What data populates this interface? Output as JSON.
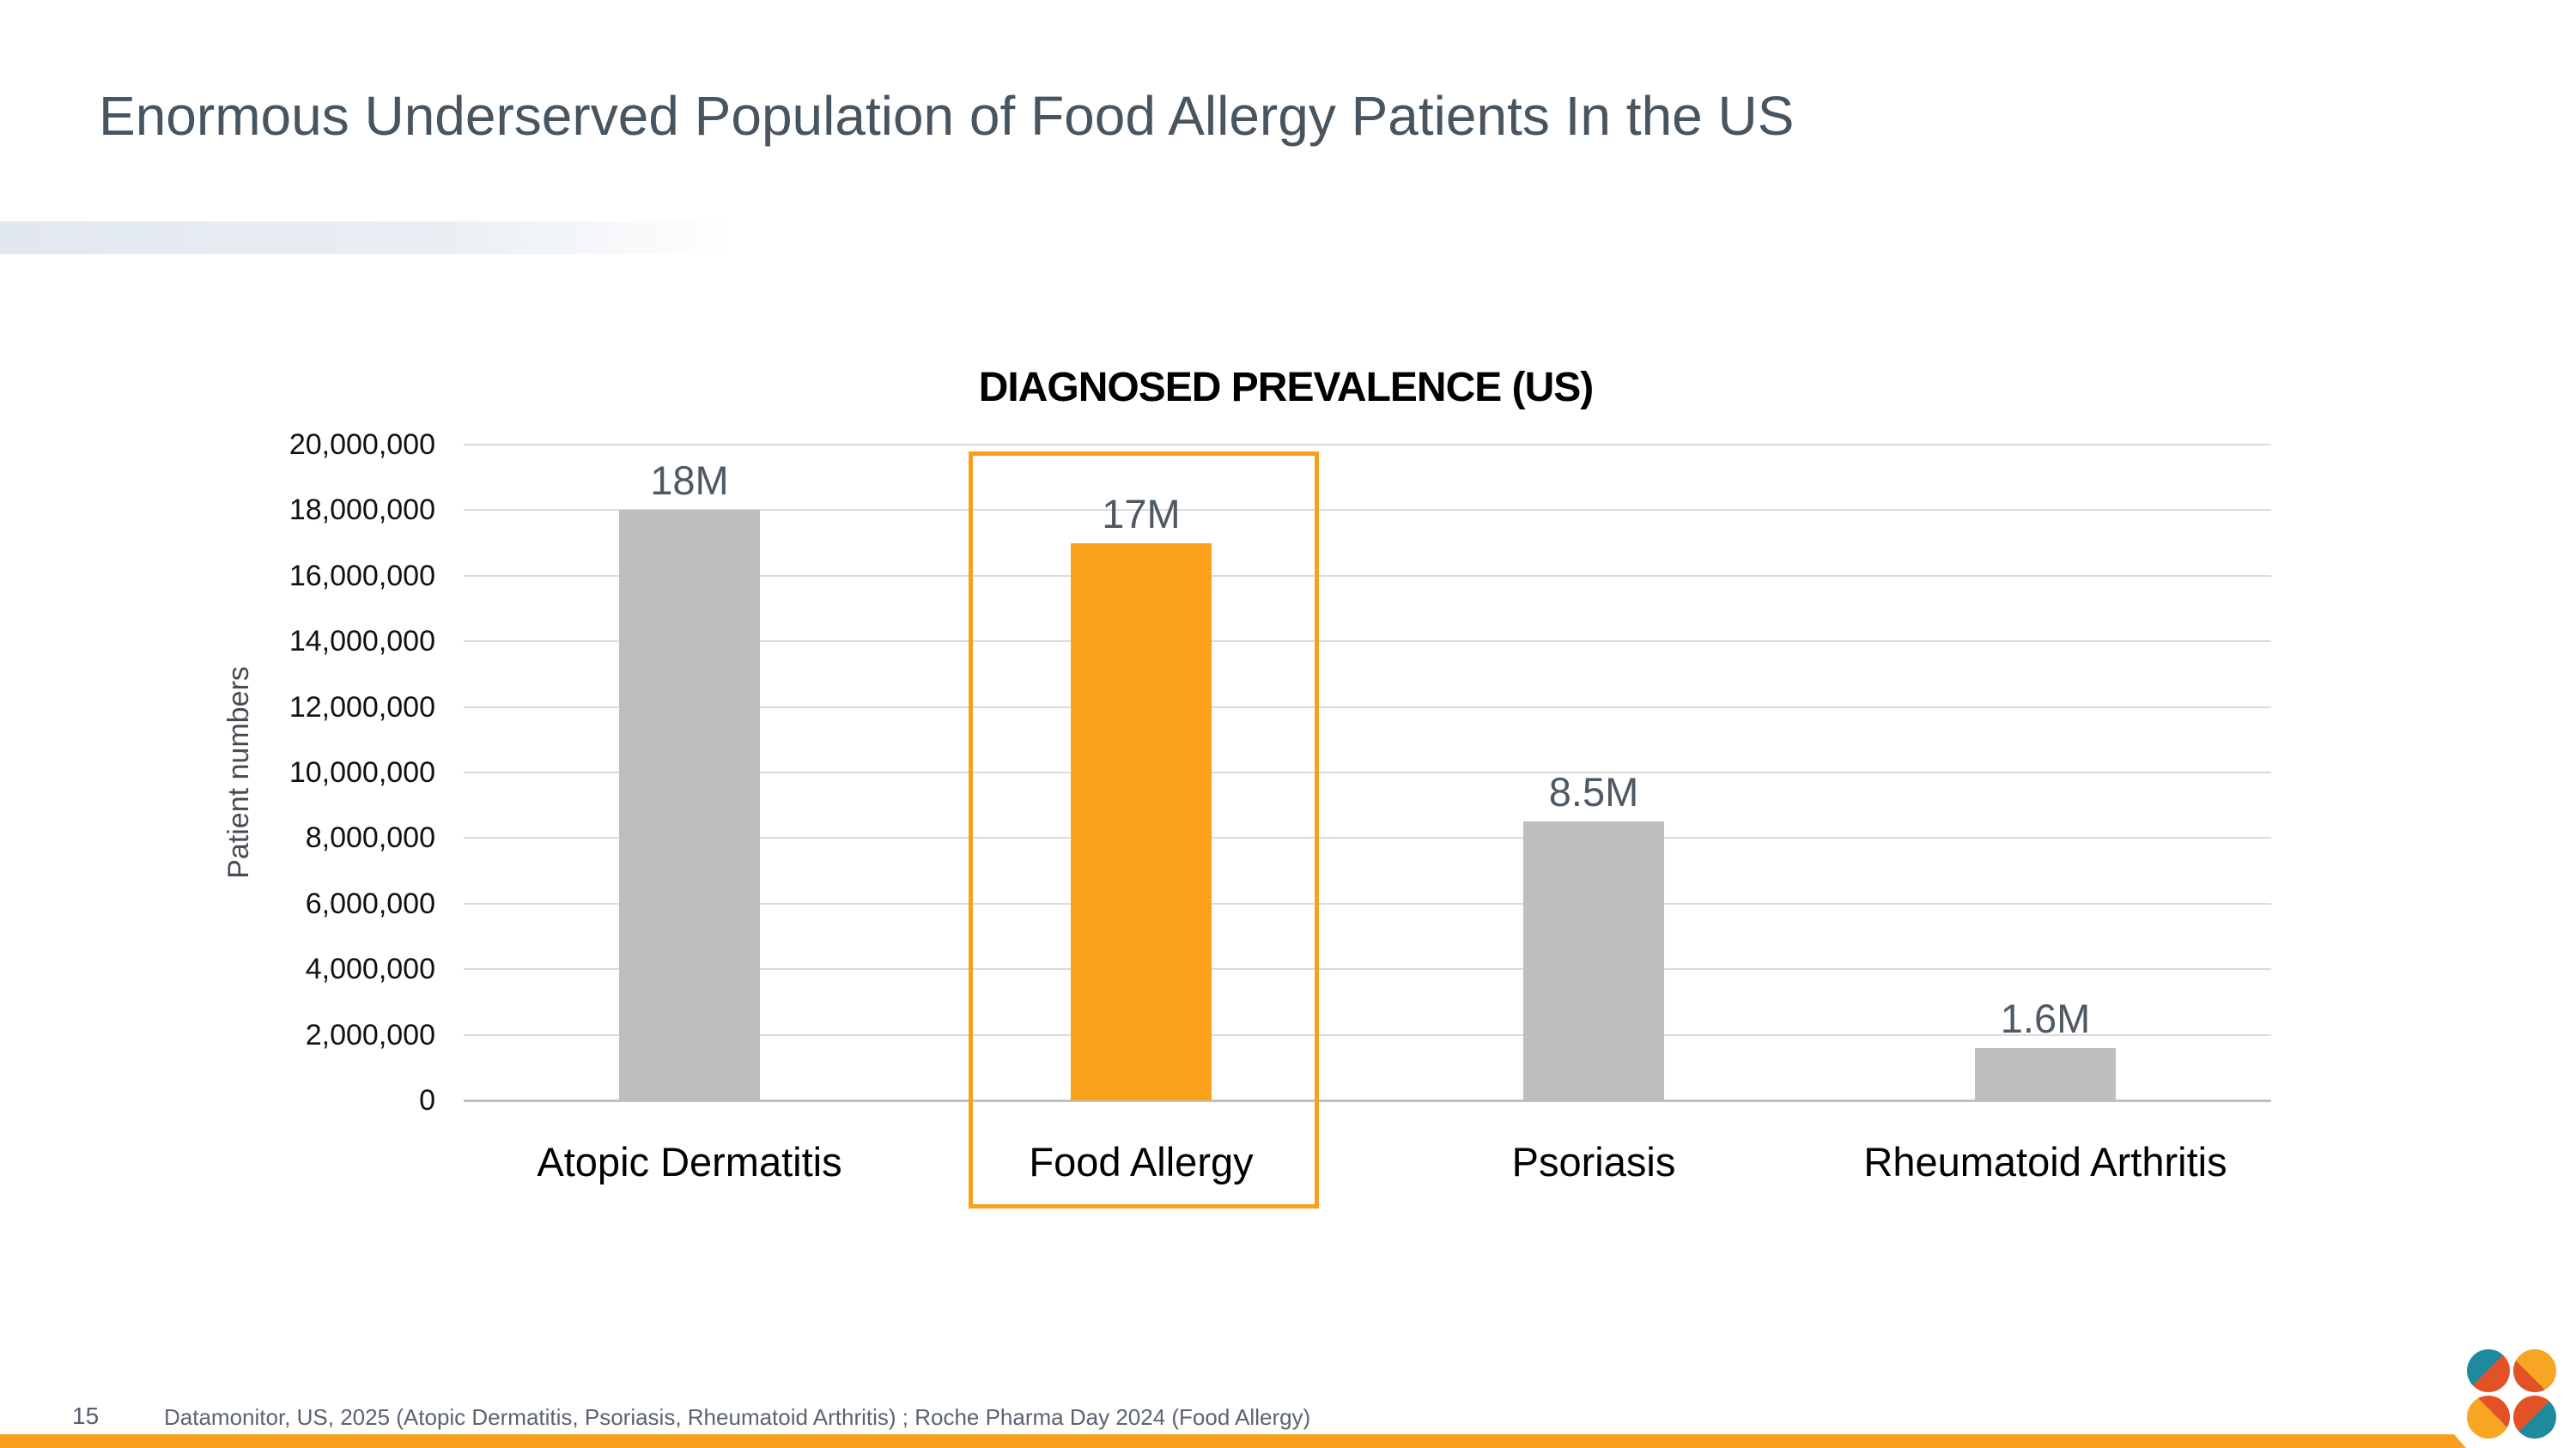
{
  "slide": {
    "title": "Enormous Underserved Population of Food Allergy Patients In the US",
    "page_number": "15",
    "source_note": "Datamonitor, US, 2025 (Atopic Dermatitis, Psoriasis, Rheumatoid Arthritis) ; Roche Pharma Day 2024 (Food Allergy)"
  },
  "chart_data": {
    "type": "bar",
    "title": "DIAGNOSED PREVALENCE (US)",
    "xlabel": "",
    "ylabel": "Patient numbers",
    "categories": [
      "Atopic Dermatitis",
      "Food Allergy",
      "Psoriasis",
      "Rheumatoid Arthritis"
    ],
    "values": [
      18000000,
      17000000,
      8500000,
      1600000
    ],
    "value_labels": [
      "18M",
      "17M",
      "8.5M",
      "1.6M"
    ],
    "ylim": [
      0,
      20000000
    ],
    "ytick_interval": 2000000,
    "ytick_labels": [
      "0",
      "2,000,000",
      "4,000,000",
      "6,000,000",
      "8,000,000",
      "10,000,000",
      "12,000,000",
      "14,000,000",
      "16,000,000",
      "18,000,000",
      "20,000,000"
    ],
    "grid": true,
    "legend_position": "none",
    "highlighted_category": "Food Allergy",
    "highlight_style": "orange bar fill with orange outline box around bar and category label"
  },
  "colors": {
    "accent_orange": "#F9A11B",
    "highlight_border_orange": "#F8A01E",
    "bar_gray": "#BEBEBE",
    "title_slate": "#475561",
    "value_label_slate": "#4E5964",
    "footer_gray": "#5A6470",
    "gridline_gray": "#DBDBDB",
    "logo_teal": "#1D8B9D",
    "logo_red_orange": "#E35226",
    "logo_yellow_orange": "#F6A623"
  }
}
